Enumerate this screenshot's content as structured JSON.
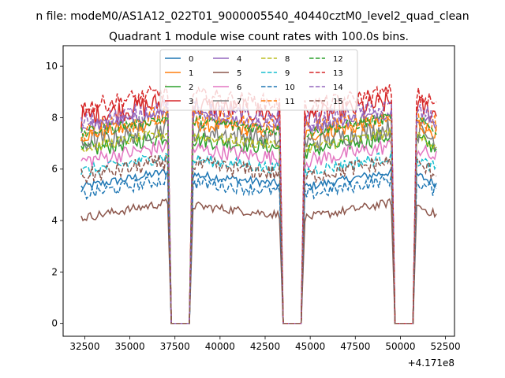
{
  "figure": {
    "suptitle": "n file: modeM0/AS1A12_022T01_9000005540_40440cztM0_level2_quad_clean"
  },
  "chart_data": {
    "type": "line",
    "title": "Quadrant 1 module wise count rates with 100.0s bins.",
    "xlabel": "",
    "ylabel": "",
    "offset_label": "+4.171e8",
    "xlim": [
      31300,
      53000
    ],
    "ylim": [
      -0.5,
      10.8
    ],
    "x_ticks": [
      32500,
      35000,
      37500,
      40000,
      42500,
      45000,
      47500,
      50000,
      52500
    ],
    "y_ticks": [
      0,
      2,
      4,
      6,
      8,
      10
    ],
    "x_tick_labels": [
      "32500",
      "35000",
      "37500",
      "40000",
      "42500",
      "45000",
      "47500",
      "50000",
      "52500"
    ],
    "y_tick_labels": [
      "0",
      "2",
      "4",
      "6",
      "8",
      "10"
    ],
    "grid": false,
    "legend_position": "upper-center",
    "legend_columns": 4,
    "segments": [
      [
        32300,
        37100
      ],
      [
        38500,
        43300
      ],
      [
        44700,
        49500
      ],
      [
        50900,
        52000
      ]
    ],
    "gaps_zero": [
      [
        37300,
        38300
      ],
      [
        43500,
        44500
      ],
      [
        49700,
        50700
      ]
    ],
    "series": [
      {
        "name": "0",
        "color": "#1f77b4",
        "dash": "solid",
        "level": 5.6
      },
      {
        "name": "1",
        "color": "#ff7f0e",
        "dash": "solid",
        "level": 7.6
      },
      {
        "name": "2",
        "color": "#2ca02c",
        "dash": "solid",
        "level": 7.0
      },
      {
        "name": "3",
        "color": "#d62728",
        "dash": "solid",
        "level": 8.3
      },
      {
        "name": "4",
        "color": "#9467bd",
        "dash": "solid",
        "level": 7.9
      },
      {
        "name": "5",
        "color": "#8c564b",
        "dash": "solid",
        "level": 4.4
      },
      {
        "name": "6",
        "color": "#e377c2",
        "dash": "solid",
        "level": 6.6
      },
      {
        "name": "7",
        "color": "#7f7f7f",
        "dash": "solid",
        "level": 7.3
      },
      {
        "name": "8",
        "color": "#bcbd22",
        "dash": "dashed",
        "level": 7.1
      },
      {
        "name": "9",
        "color": "#17becf",
        "dash": "dashed",
        "level": 6.2
      },
      {
        "name": "10",
        "color": "#1f77b4",
        "dash": "dashed",
        "level": 5.3
      },
      {
        "name": "11",
        "color": "#ff7f0e",
        "dash": "dashed",
        "level": 7.8
      },
      {
        "name": "12",
        "color": "#2ca02c",
        "dash": "dashed",
        "level": 7.7
      },
      {
        "name": "13",
        "color": "#d62728",
        "dash": "dashed",
        "level": 8.7
      },
      {
        "name": "14",
        "color": "#9467bd",
        "dash": "dashed",
        "level": 8.1
      },
      {
        "name": "15",
        "color": "#8c564b",
        "dash": "dashed",
        "level": 6.0
      }
    ]
  }
}
